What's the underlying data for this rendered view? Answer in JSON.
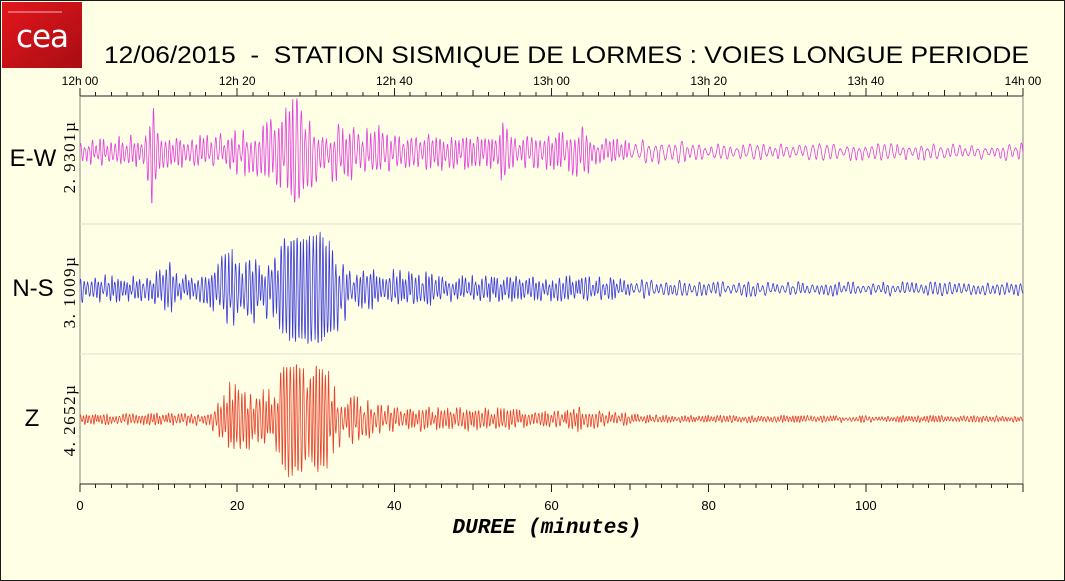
{
  "logo": {
    "text": "cea",
    "color": "#e3161d"
  },
  "background_color": "#ffffe6",
  "chart_data": {
    "type": "line",
    "title": "12/06/2015  -  STATION SISMIQUE DE LORMES : VOIES LONGUE PERIODE",
    "xlabel": "DUREE (minutes)",
    "xlim": [
      0,
      120
    ],
    "x_ticks": [
      0,
      20,
      40,
      60,
      80,
      100
    ],
    "top_axis_ticks": [
      "12h 00",
      "12h 20",
      "12h 40",
      "13h 00",
      "13h 20",
      "13h 40",
      "14h 00"
    ],
    "grid": false,
    "series": [
      {
        "name": "E-W",
        "scale_label": "2. 9301µ",
        "scale": 2.9301,
        "color": "#e040e0",
        "amplitude_envelope": [
          [
            0,
            0.6
          ],
          [
            3,
            0.7
          ],
          [
            6,
            0.8
          ],
          [
            8,
            1.1
          ],
          [
            8.8,
            1.8
          ],
          [
            9.2,
            2.93
          ],
          [
            9.6,
            1.6
          ],
          [
            10.2,
            0.8
          ],
          [
            15,
            0.8
          ],
          [
            18,
            0.9
          ],
          [
            20,
            1.25
          ],
          [
            24,
            1.45
          ],
          [
            26,
            1.9
          ],
          [
            27.5,
            2.85
          ],
          [
            28.5,
            2.15
          ],
          [
            30,
            1.7
          ],
          [
            34,
            1.35
          ],
          [
            38,
            1.3
          ],
          [
            40,
            0.9
          ],
          [
            50,
            0.85
          ],
          [
            52,
            0.9
          ],
          [
            54,
            1.5
          ],
          [
            55.5,
            0.8
          ],
          [
            60,
            0.85
          ],
          [
            63.5,
            1.45
          ],
          [
            66,
            0.7
          ],
          [
            70,
            0.6
          ],
          [
            76,
            0.6
          ],
          [
            78,
            0.4
          ],
          [
            120,
            0.42
          ]
        ]
      },
      {
        "name": "N-S",
        "scale_label": "3. 1009µ",
        "scale": 3.1009,
        "color": "#3a3ae0",
        "amplitude_envelope": [
          [
            0,
            0.7
          ],
          [
            8,
            0.7
          ],
          [
            10,
            0.9
          ],
          [
            11.8,
            1.5
          ],
          [
            12.5,
            0.75
          ],
          [
            16,
            0.75
          ],
          [
            17.5,
            1.4
          ],
          [
            19,
            2.25
          ],
          [
            20.5,
            1.75
          ],
          [
            22,
            2.0
          ],
          [
            24,
            1.5
          ],
          [
            26,
            2.6
          ],
          [
            29,
            3.0
          ],
          [
            31,
            2.9
          ],
          [
            32.5,
            2.25
          ],
          [
            33.5,
            1.75
          ],
          [
            35,
            1.1
          ],
          [
            44,
            0.9
          ],
          [
            46,
            0.7
          ],
          [
            66,
            0.65
          ],
          [
            70,
            0.5
          ],
          [
            79,
            0.4
          ],
          [
            120,
            0.35
          ]
        ]
      },
      {
        "name": "Z",
        "scale_label": "4. 2652µ",
        "scale": 4.2652,
        "color": "#e8402a",
        "amplitude_envelope": [
          [
            0,
            0.41
          ],
          [
            16,
            0.48
          ],
          [
            17.5,
            1.38
          ],
          [
            19,
            2.75
          ],
          [
            21,
            2.61
          ],
          [
            22.5,
            1.93
          ],
          [
            24.5,
            2.41
          ],
          [
            26,
            3.78
          ],
          [
            28,
            4.26
          ],
          [
            28.8,
            2.89
          ],
          [
            30,
            3.99
          ],
          [
            31.5,
            3.44
          ],
          [
            32.5,
            2.34
          ],
          [
            35,
            1.65
          ],
          [
            38,
            1.24
          ],
          [
            41,
            0.89
          ],
          [
            55,
            0.83
          ],
          [
            57,
            0.55
          ],
          [
            61,
            0.62
          ],
          [
            63.5,
            0.89
          ],
          [
            66,
            0.62
          ],
          [
            70,
            0.41
          ],
          [
            75,
            0.28
          ],
          [
            120,
            0.24
          ]
        ]
      }
    ]
  }
}
